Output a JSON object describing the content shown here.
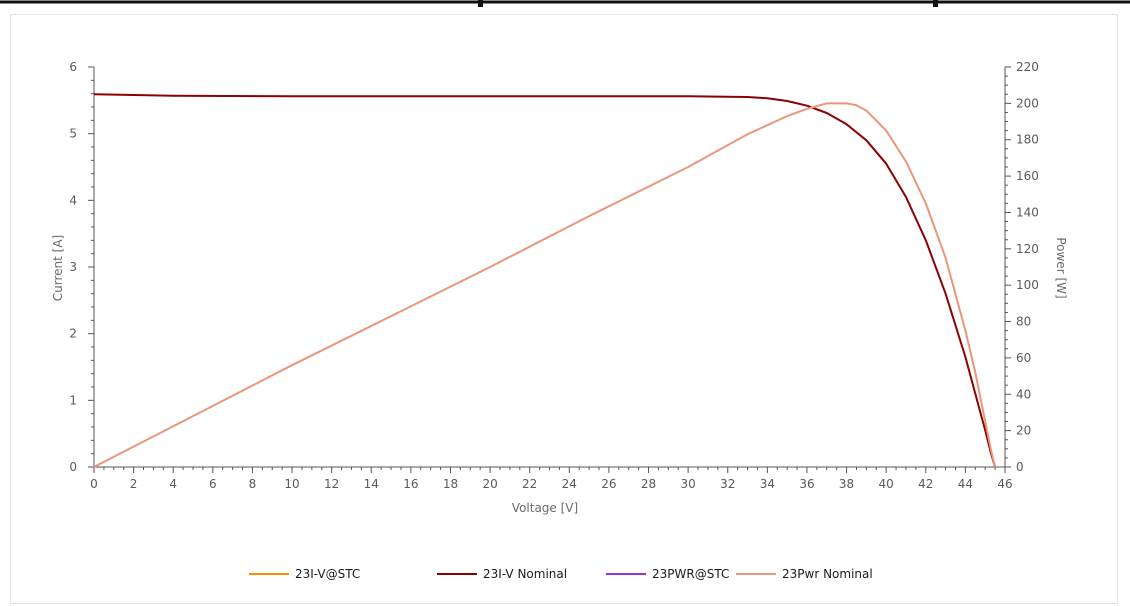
{
  "chart_data": {
    "type": "line",
    "xlabel": "Voltage [V]",
    "ylabel": "Current [A]",
    "y2label": "Power [W]",
    "xlim": [
      0,
      46
    ],
    "ylim": [
      0,
      6
    ],
    "y2lim": [
      0,
      220
    ],
    "x_ticks": [
      "0",
      "2",
      "4",
      "6",
      "8",
      "10",
      "12",
      "14",
      "16",
      "18",
      "20",
      "22",
      "24",
      "26",
      "28",
      "30",
      "32",
      "34",
      "36",
      "38",
      "40",
      "42",
      "44",
      "46"
    ],
    "y_ticks": [
      "0",
      "1",
      "2",
      "3",
      "4",
      "5",
      "6"
    ],
    "y2_ticks": [
      "0",
      "20",
      "40",
      "60",
      "80",
      "100",
      "120",
      "140",
      "160",
      "180",
      "200",
      "220"
    ],
    "grid": false,
    "legend_position": "bottom",
    "series": [
      {
        "name": "23I-V@STC",
        "color": "#ff8c00",
        "axis": "left",
        "x": [],
        "y": []
      },
      {
        "name": "23I-V Nominal",
        "color": "#8b0000",
        "axis": "left",
        "x": [
          0,
          4,
          10,
          20,
          30,
          33,
          34,
          35,
          36,
          37,
          38,
          39,
          40,
          41,
          42,
          43,
          44,
          44.5,
          45,
          45.3,
          45.5
        ],
        "y": [
          5.59,
          5.57,
          5.56,
          5.56,
          5.56,
          5.55,
          5.53,
          5.49,
          5.42,
          5.31,
          5.14,
          4.9,
          4.55,
          4.05,
          3.4,
          2.6,
          1.65,
          1.1,
          0.55,
          0.2,
          0
        ]
      },
      {
        "name": "23PWR@STC",
        "color": "#9932cc",
        "axis": "right",
        "x": [],
        "y": []
      },
      {
        "name": "23Pwr Nominal",
        "color": "#e9967a",
        "axis": "right",
        "x": [
          0,
          5,
          10,
          15,
          20,
          25,
          30,
          33,
          35,
          36,
          37,
          38,
          38.5,
          39,
          40,
          41,
          42,
          43,
          44,
          44.5,
          45,
          45.3,
          45.5
        ],
        "y": [
          0,
          28,
          56,
          83,
          110,
          138,
          165,
          183,
          193,
          197,
          200,
          200,
          199,
          196,
          185,
          168,
          145,
          115,
          75,
          52,
          25,
          9,
          0
        ]
      }
    ]
  }
}
